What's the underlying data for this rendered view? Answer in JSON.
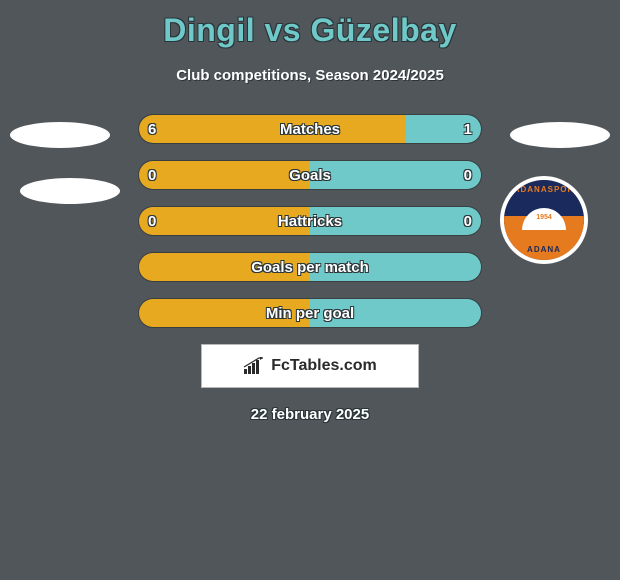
{
  "title": "Dingil vs Güzelbay",
  "subtitle": "Club competitions, Season 2024/2025",
  "date": "22 february 2025",
  "logo_text": "FcTables.com",
  "colors": {
    "left_bar": "#e6a91f",
    "right_bar": "#6fc9c9",
    "empty_left": "#e6a91f",
    "empty_right": "#6fc9c9",
    "background": "#50565a"
  },
  "badge": {
    "top_text": "ADANASPOR",
    "year": "1954",
    "bottom_text": "ADANA"
  },
  "rows": [
    {
      "label": "Matches",
      "left": "6",
      "right": "1",
      "left_pct": 78,
      "right_pct": 22,
      "show_vals": true
    },
    {
      "label": "Goals",
      "left": "0",
      "right": "0",
      "left_pct": 50,
      "right_pct": 50,
      "show_vals": true
    },
    {
      "label": "Hattricks",
      "left": "0",
      "right": "0",
      "left_pct": 50,
      "right_pct": 50,
      "show_vals": true
    },
    {
      "label": "Goals per match",
      "left": "",
      "right": "",
      "left_pct": 50,
      "right_pct": 50,
      "show_vals": false
    },
    {
      "label": "Min per goal",
      "left": "",
      "right": "",
      "left_pct": 50,
      "right_pct": 50,
      "show_vals": false
    }
  ]
}
